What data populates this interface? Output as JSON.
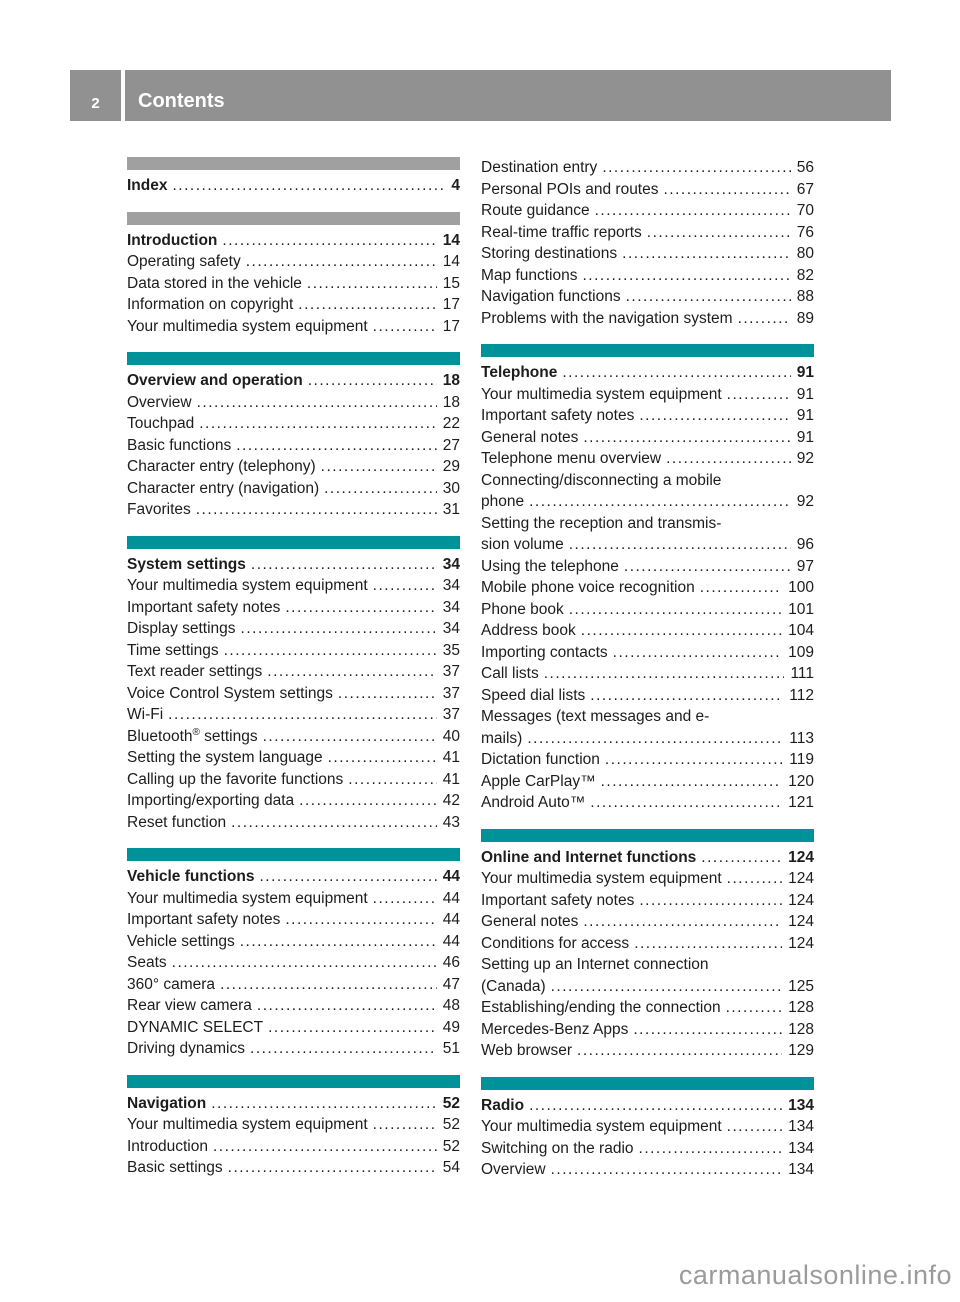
{
  "header": {
    "page_number": "2",
    "title": "Contents"
  },
  "colors": {
    "teal": "#009299",
    "bar_gray": "#a0a0a0",
    "header_gray": "#919191",
    "text": "#1d1d1d",
    "watermark": "#9b9b9b"
  },
  "watermark": "carmanualsonline.info",
  "columns": [
    {
      "name": "left",
      "sections": [
        {
          "bar": "gray",
          "entries": [
            {
              "label": "Index",
              "page": "4",
              "bold": true
            }
          ]
        },
        {
          "bar": "gray",
          "entries": [
            {
              "label": "Introduction",
              "page": "14",
              "bold": true
            },
            {
              "label": "Operating safety",
              "page": "14"
            },
            {
              "label": "Data stored in the vehicle",
              "page": "15"
            },
            {
              "label": "Information on copyright",
              "page": "17"
            },
            {
              "label": "Your multimedia system equipment",
              "page": "17"
            }
          ]
        },
        {
          "bar": "teal",
          "entries": [
            {
              "label": "Overview and operation",
              "page": "18",
              "bold": true
            },
            {
              "label": "Overview",
              "page": "18"
            },
            {
              "label": "Touchpad",
              "page": "22"
            },
            {
              "label": "Basic functions",
              "page": "27"
            },
            {
              "label": "Character entry (telephony)",
              "page": "29"
            },
            {
              "label": "Character entry (navigation)",
              "page": "30"
            },
            {
              "label": "Favorites",
              "page": "31"
            }
          ]
        },
        {
          "bar": "teal",
          "entries": [
            {
              "label": "System settings",
              "page": "34",
              "bold": true
            },
            {
              "label": "Your multimedia system equipment",
              "page": "34"
            },
            {
              "label": "Important safety notes",
              "page": "34"
            },
            {
              "label": "Display settings",
              "page": "34"
            },
            {
              "label": "Time settings",
              "page": "35"
            },
            {
              "label": "Text reader settings",
              "page": "37"
            },
            {
              "label": "Voice Control System settings",
              "page": "37"
            },
            {
              "label": "Wi-Fi",
              "page": "37"
            },
            {
              "label": "Bluetooth® settings",
              "page": "40"
            },
            {
              "label": "Setting the system language",
              "page": "41"
            },
            {
              "label": "Calling up the favorite functions",
              "page": "41"
            },
            {
              "label": "Importing/exporting data",
              "page": "42"
            },
            {
              "label": "Reset function",
              "page": "43"
            }
          ]
        },
        {
          "bar": "teal",
          "entries": [
            {
              "label": "Vehicle functions",
              "page": "44",
              "bold": true
            },
            {
              "label": "Your multimedia system equipment",
              "page": "44"
            },
            {
              "label": "Important safety notes",
              "page": "44"
            },
            {
              "label": "Vehicle settings",
              "page": "44"
            },
            {
              "label": "Seats",
              "page": "46"
            },
            {
              "label": "360° camera",
              "page": "47"
            },
            {
              "label": "Rear view camera",
              "page": "48"
            },
            {
              "label": "DYNAMIC SELECT",
              "page": "49"
            },
            {
              "label": "Driving dynamics",
              "page": "51"
            }
          ]
        },
        {
          "bar": "teal",
          "entries": [
            {
              "label": "Navigation",
              "page": "52",
              "bold": true
            },
            {
              "label": "Your multimedia system equipment",
              "page": "52"
            },
            {
              "label": "Introduction",
              "page": "52"
            },
            {
              "label": "Basic settings",
              "page": "54"
            }
          ]
        }
      ]
    },
    {
      "name": "right",
      "sections": [
        {
          "bar": "none",
          "entries": [
            {
              "label": "Destination entry",
              "page": "56"
            },
            {
              "label": "Personal POIs and routes",
              "page": "67"
            },
            {
              "label": "Route guidance",
              "page": "70"
            },
            {
              "label": "Real-time traffic reports",
              "page": "76"
            },
            {
              "label": "Storing destinations",
              "page": "80"
            },
            {
              "label": "Map functions",
              "page": "82"
            },
            {
              "label": "Navigation functions",
              "page": "88"
            },
            {
              "label": "Problems with the navigation system",
              "page": "89"
            }
          ]
        },
        {
          "bar": "teal",
          "entries": [
            {
              "label": "Telephone",
              "page": "91",
              "bold": true
            },
            {
              "label": "Your multimedia system equipment",
              "page": "91"
            },
            {
              "label": "Important safety notes",
              "page": "91"
            },
            {
              "label": "General notes",
              "page": "91"
            },
            {
              "label": "Telephone menu overview",
              "page": "92"
            },
            {
              "pre": "Connecting/disconnecting a mobile",
              "label": "phone",
              "page": "92"
            },
            {
              "pre": "Setting the reception and transmis-",
              "label": "sion volume",
              "page": "96"
            },
            {
              "label": "Using the telephone",
              "page": "97"
            },
            {
              "label": "Mobile phone voice recognition",
              "page": "100"
            },
            {
              "label": "Phone book",
              "page": "101"
            },
            {
              "label": "Address book",
              "page": "104"
            },
            {
              "label": "Importing contacts",
              "page": "109"
            },
            {
              "label": "Call lists",
              "page": "111"
            },
            {
              "label": "Speed dial lists",
              "page": "112"
            },
            {
              "pre": "Messages (text messages and e-",
              "label": "mails)",
              "page": "113"
            },
            {
              "label": "Dictation function",
              "page": "119"
            },
            {
              "label": "Apple CarPlay™",
              "page": "120"
            },
            {
              "label": "Android Auto™",
              "page": "121"
            }
          ]
        },
        {
          "bar": "teal",
          "entries": [
            {
              "label": "Online and Internet functions",
              "page": "124",
              "bold": true
            },
            {
              "label": "Your multimedia system equipment",
              "page": "124"
            },
            {
              "label": "Important safety notes",
              "page": "124"
            },
            {
              "label": "General notes",
              "page": "124"
            },
            {
              "label": "Conditions for access",
              "page": "124"
            },
            {
              "pre": "Setting up an Internet connection",
              "label": "(Canada)",
              "page": "125"
            },
            {
              "label": "Establishing/ending the connection",
              "page": "128"
            },
            {
              "label": "Mercedes-Benz Apps",
              "page": "128"
            },
            {
              "label": "Web browser",
              "page": "129"
            }
          ]
        },
        {
          "bar": "teal",
          "entries": [
            {
              "label": "Radio",
              "page": "134",
              "bold": true
            },
            {
              "label": "Your multimedia system equipment",
              "page": "134"
            },
            {
              "label": "Switching on the radio",
              "page": "134"
            },
            {
              "label": "Overview",
              "page": "134"
            }
          ]
        }
      ]
    }
  ]
}
